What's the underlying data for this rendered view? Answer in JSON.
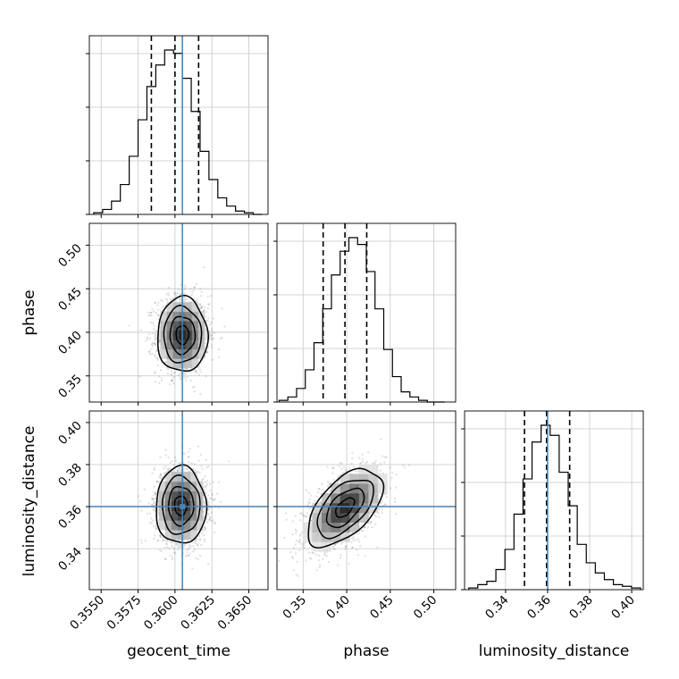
{
  "figure": {
    "type": "corner-plot",
    "title": ""
  },
  "chart_data": {
    "type": "corner",
    "parameters": [
      "geocent_time",
      "phase",
      "luminosity_distance"
    ],
    "labels": [
      "geocent_time",
      "phase",
      "luminosity_distance"
    ],
    "truths": [
      0.3605,
      null,
      0.36
    ],
    "truth_color": "#4682b4",
    "grid": true,
    "ranges": {
      "geocent_time": [
        0.3542,
        0.3663
      ],
      "phase": [
        0.32,
        0.525
      ],
      "luminosity_distance": [
        0.3205,
        0.4055
      ]
    },
    "ticks": {
      "geocent_time": [
        "0.3550",
        "0.3575",
        "0.3600",
        "0.3625",
        "0.3650"
      ],
      "phase": [
        "0.35",
        "0.40",
        "0.45",
        "0.50"
      ],
      "luminosity_distance": [
        "0.34",
        "0.36",
        "0.38",
        "0.40"
      ]
    },
    "quantiles": {
      "geocent_time": [
        0.3584,
        0.36,
        0.3616
      ],
      "phase": [
        0.373,
        0.398,
        0.423
      ],
      "luminosity_distance": [
        0.349,
        0.3595,
        0.3705
      ]
    },
    "histograms": {
      "geocent_time": {
        "edges": [
          0.3545,
          0.3551,
          0.3557,
          0.3563,
          0.3569,
          0.3575,
          0.3581,
          0.3587,
          0.3593,
          0.3599,
          0.3605,
          0.3611,
          0.3617,
          0.3623,
          0.3629,
          0.3635,
          0.3641,
          0.3647,
          0.3653,
          0.3659
        ],
        "counts": [
          1,
          3,
          8,
          18,
          35,
          57,
          77,
          90,
          99,
          97,
          82,
          62,
          38,
          21,
          10,
          5,
          2,
          1,
          0
        ]
      },
      "phase": {
        "edges": [
          0.3225,
          0.3325,
          0.3425,
          0.3525,
          0.3625,
          0.3725,
          0.3825,
          0.3925,
          0.4025,
          0.4125,
          0.4225,
          0.4325,
          0.4425,
          0.4525,
          0.4625,
          0.4725,
          0.4825,
          0.4925,
          0.5025,
          0.5125
        ],
        "counts": [
          1,
          3,
          8,
          19,
          35,
          55,
          75,
          89,
          97,
          93,
          77,
          55,
          31,
          15,
          6,
          3,
          1,
          0,
          0
        ]
      },
      "luminosity_distance": {
        "edges": [
          0.3225,
          0.3268,
          0.3311,
          0.3354,
          0.3397,
          0.344,
          0.3483,
          0.3526,
          0.3569,
          0.3612,
          0.3655,
          0.3698,
          0.3741,
          0.3784,
          0.3827,
          0.387,
          0.3913,
          0.3956,
          0.3999,
          0.4042
        ],
        "counts": [
          1,
          3,
          5,
          12,
          24,
          45,
          66,
          88,
          98,
          92,
          70,
          50,
          27,
          16,
          10,
          6,
          3,
          2,
          1
        ]
      }
    },
    "pairs": [
      {
        "x": "geocent_time",
        "y": "phase",
        "center": [
          0.3605,
          0.397
        ],
        "sigma": [
          0.00085,
          0.0215
        ],
        "rho": 0.0
      },
      {
        "x": "geocent_time",
        "y": "luminosity_distance",
        "center": [
          0.3604,
          0.3605
        ],
        "sigma": [
          0.00085,
          0.0092
        ],
        "rho": 0.0
      },
      {
        "x": "phase",
        "y": "luminosity_distance",
        "center": [
          0.398,
          0.3595
        ],
        "sigma": [
          0.0215,
          0.0092
        ],
        "rho": 0.55
      }
    ]
  }
}
